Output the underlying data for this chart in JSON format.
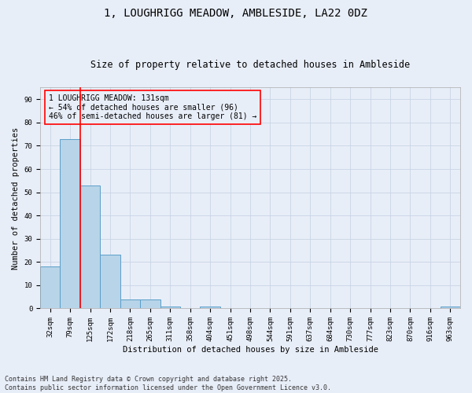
{
  "title1": "1, LOUGHRIGG MEADOW, AMBLESIDE, LA22 0DZ",
  "title2": "Size of property relative to detached houses in Ambleside",
  "xlabel": "Distribution of detached houses by size in Ambleside",
  "ylabel": "Number of detached properties",
  "categories": [
    "32sqm",
    "79sqm",
    "125sqm",
    "172sqm",
    "218sqm",
    "265sqm",
    "311sqm",
    "358sqm",
    "404sqm",
    "451sqm",
    "498sqm",
    "544sqm",
    "591sqm",
    "637sqm",
    "684sqm",
    "730sqm",
    "777sqm",
    "823sqm",
    "870sqm",
    "916sqm",
    "963sqm"
  ],
  "values": [
    18,
    73,
    53,
    23,
    4,
    4,
    1,
    0,
    1,
    0,
    0,
    0,
    0,
    0,
    0,
    0,
    0,
    0,
    0,
    0,
    1
  ],
  "bar_color": "#b8d4e8",
  "bar_edge_color": "#5a9ec9",
  "bar_linewidth": 0.7,
  "grid_color": "#c8d4e4",
  "bg_color": "#e8eef8",
  "annotation_box_text": "1 LOUGHRIGG MEADOW: 131sqm\n← 54% of detached houses are smaller (96)\n46% of semi-detached houses are larger (81) →",
  "red_line_x": 1.5,
  "ylim": [
    0,
    95
  ],
  "yticks": [
    0,
    10,
    20,
    30,
    40,
    50,
    60,
    70,
    80,
    90
  ],
  "footer": "Contains HM Land Registry data © Crown copyright and database right 2025.\nContains public sector information licensed under the Open Government Licence v3.0.",
  "title_fontsize": 10,
  "subtitle_fontsize": 8.5,
  "axis_label_fontsize": 7.5,
  "tick_fontsize": 6.5,
  "footer_fontsize": 6,
  "annotation_fontsize": 7
}
